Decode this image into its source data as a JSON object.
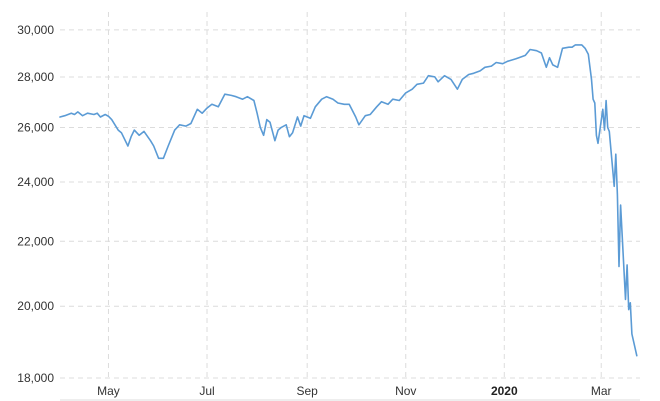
{
  "chart_data": {
    "type": "line",
    "title": "",
    "xlabel": "",
    "ylabel": "",
    "y_scale": "log",
    "ylim": [
      18000,
      30800
    ],
    "xlim": [
      "2019-04-01",
      "2020-03-25"
    ],
    "grid": true,
    "line_color": "#5b9bd5",
    "yticks": [
      {
        "value": 18000,
        "label": "18,000"
      },
      {
        "value": 20000,
        "label": "20,000"
      },
      {
        "value": 22000,
        "label": "22,000"
      },
      {
        "value": 24000,
        "label": "24,000"
      },
      {
        "value": 26000,
        "label": "26,000"
      },
      {
        "value": 28000,
        "label": "28,000"
      },
      {
        "value": 30000,
        "label": "30,000"
      }
    ],
    "xticks": [
      {
        "date": "2019-05-01",
        "label": "May",
        "bold": false
      },
      {
        "date": "2019-07-01",
        "label": "Jul",
        "bold": false
      },
      {
        "date": "2019-09-01",
        "label": "Sep",
        "bold": false
      },
      {
        "date": "2019-11-01",
        "label": "Nov",
        "bold": false
      },
      {
        "date": "2020-01-01",
        "label": "2020",
        "bold": true
      },
      {
        "date": "2020-03-01",
        "label": "Mar",
        "bold": false
      }
    ],
    "series": [
      {
        "x": [
          "2019-04-01",
          "2019-04-04",
          "2019-04-08",
          "2019-04-10",
          "2019-04-12",
          "2019-04-15",
          "2019-04-18",
          "2019-04-22",
          "2019-04-24",
          "2019-04-26",
          "2019-04-29",
          "2019-05-01",
          "2019-05-03",
          "2019-05-07",
          "2019-05-09",
          "2019-05-13",
          "2019-05-15",
          "2019-05-17",
          "2019-05-20",
          "2019-05-23",
          "2019-05-27",
          "2019-05-29",
          "2019-06-01",
          "2019-06-04",
          "2019-06-07",
          "2019-06-11",
          "2019-06-14",
          "2019-06-18",
          "2019-06-21",
          "2019-06-25",
          "2019-06-28",
          "2019-07-01",
          "2019-07-04",
          "2019-07-08",
          "2019-07-12",
          "2019-07-16",
          "2019-07-19",
          "2019-07-23",
          "2019-07-26",
          "2019-07-30",
          "2019-08-01",
          "2019-08-03",
          "2019-08-05",
          "2019-08-07",
          "2019-08-09",
          "2019-08-12",
          "2019-08-14",
          "2019-08-16",
          "2019-08-19",
          "2019-08-21",
          "2019-08-23",
          "2019-08-26",
          "2019-08-28",
          "2019-08-30",
          "2019-09-03",
          "2019-09-06",
          "2019-09-10",
          "2019-09-13",
          "2019-09-17",
          "2019-09-20",
          "2019-09-24",
          "2019-09-27",
          "2019-10-01",
          "2019-10-03",
          "2019-10-07",
          "2019-10-10",
          "2019-10-14",
          "2019-10-17",
          "2019-10-21",
          "2019-10-24",
          "2019-10-28",
          "2019-11-01",
          "2019-11-05",
          "2019-11-08",
          "2019-11-12",
          "2019-11-15",
          "2019-11-19",
          "2019-11-21",
          "2019-11-25",
          "2019-11-29",
          "2019-12-03",
          "2019-12-06",
          "2019-12-10",
          "2019-12-13",
          "2019-12-17",
          "2019-12-20",
          "2019-12-24",
          "2019-12-27",
          "2019-12-31",
          "2020-01-03",
          "2020-01-08",
          "2020-01-10",
          "2020-01-14",
          "2020-01-17",
          "2020-01-21",
          "2020-01-24",
          "2020-01-27",
          "2020-01-29",
          "2020-01-31",
          "2020-02-03",
          "2020-02-06",
          "2020-02-10",
          "2020-02-12",
          "2020-02-14",
          "2020-02-18",
          "2020-02-20",
          "2020-02-22",
          "2020-02-24",
          "2020-02-25",
          "2020-02-26",
          "2020-02-27",
          "2020-02-28",
          "2020-03-02",
          "2020-03-03",
          "2020-03-04",
          "2020-03-05",
          "2020-03-06",
          "2020-03-09",
          "2020-03-10",
          "2020-03-11",
          "2020-03-12",
          "2020-03-13",
          "2020-03-16",
          "2020-03-17",
          "2020-03-18",
          "2020-03-19",
          "2020-03-20",
          "2020-03-23"
        ],
        "y": [
          26400,
          26450,
          26550,
          26500,
          26600,
          26450,
          26550,
          26500,
          26550,
          26400,
          26500,
          26430,
          26300,
          25900,
          25800,
          25300,
          25650,
          25900,
          25700,
          25850,
          25500,
          25300,
          24850,
          24850,
          25300,
          25900,
          26100,
          26050,
          26150,
          26700,
          26550,
          26750,
          26900,
          26800,
          27300,
          27250,
          27200,
          27100,
          27200,
          27050,
          26550,
          26000,
          25700,
          26300,
          26200,
          25500,
          25900,
          26000,
          26100,
          25650,
          25800,
          26400,
          26050,
          26450,
          26350,
          26800,
          27100,
          27200,
          27100,
          26950,
          26900,
          26900,
          26400,
          26100,
          26450,
          26500,
          26800,
          27000,
          26900,
          27100,
          27050,
          27350,
          27500,
          27700,
          27750,
          28050,
          28000,
          27800,
          28050,
          27900,
          27500,
          27900,
          28100,
          28150,
          28250,
          28400,
          28450,
          28600,
          28550,
          28650,
          28750,
          28800,
          28900,
          29150,
          29100,
          29000,
          28400,
          28800,
          28500,
          28400,
          29200,
          29250,
          29250,
          29350,
          29350,
          29200,
          28950,
          27900,
          27100,
          26950,
          25700,
          25400,
          26700,
          25900,
          27050,
          26000,
          25850,
          23850,
          25000,
          23550,
          21200,
          23200,
          20200,
          21250,
          19900,
          20100,
          19200,
          18600
        ]
      }
    ]
  }
}
